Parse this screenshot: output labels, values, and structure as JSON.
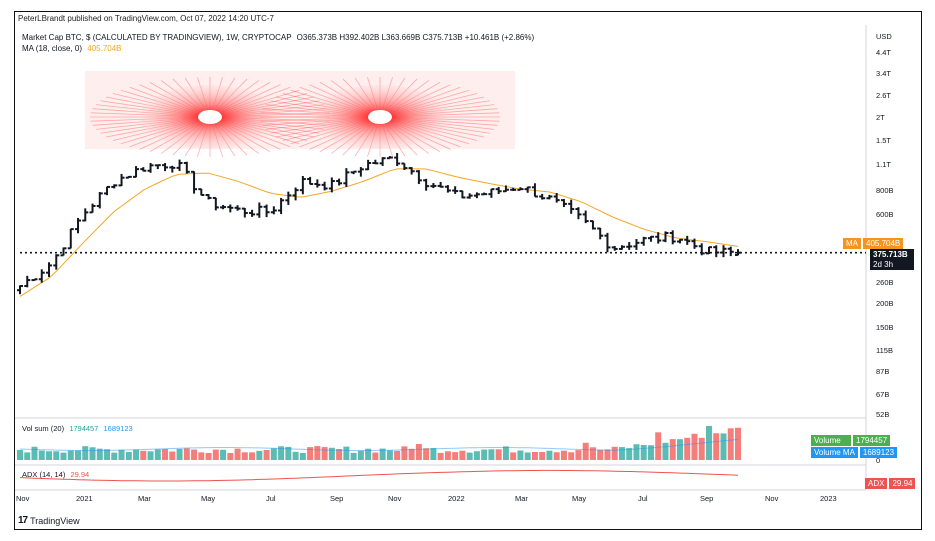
{
  "header": {
    "published_by": "PeterLBrandt published on TradingView.com, Oct 07, 2022 14:20 UTC-7",
    "symbol_title": "Market Cap BTC, $ (CALCULATED BY TRADINGVIEW), 1W, CRYPTOCAP",
    "ohlc": "O365.373B  H392.402B  L363.669B  C375.713B  +10.461B (+2.86%)",
    "ma_label": "MA (18, close, 0)",
    "ma_value": "405.704B"
  },
  "price_axis": {
    "currency": "USD",
    "labels": [
      "4.4T",
      "3.4T",
      "2.6T",
      "2T",
      "1.5T",
      "1.1T",
      "800B",
      "600B",
      "260B",
      "200B",
      "150B",
      "115B",
      "87B",
      "67B",
      "52B"
    ],
    "ma_badge": {
      "label": "MA",
      "value": "405.704B"
    },
    "price_badge": {
      "value": "375.713B",
      "countdown": "2d 3h"
    }
  },
  "time_axis": {
    "labels": [
      "Nov",
      "2021",
      "Mar",
      "May",
      "Jul",
      "Sep",
      "Nov",
      "2022",
      "Mar",
      "May",
      "Jul",
      "Sep",
      "Nov",
      "2023"
    ]
  },
  "volume_pane": {
    "label": "Vol sum (20)",
    "value1": "1794457",
    "value2": "1689123",
    "zero_label": "0",
    "badge_volume": {
      "label": "Volume",
      "value": "1794457"
    },
    "badge_volume_ma": {
      "label": "Volume MA",
      "value": "1689123"
    }
  },
  "adx_pane": {
    "label": "ADX (14, 14)",
    "value": "29.94",
    "badge": {
      "label": "ADX",
      "value": "29.94"
    }
  },
  "brand": {
    "name": "TradingView"
  },
  "colors": {
    "bars": "#131722",
    "ma": "#f5a623",
    "ma_badge": "#f7941d",
    "price_badge": "#131722",
    "vol_up": "#26a69a",
    "vol_down": "#ef5350",
    "vol_badge_green": "#4caf50",
    "vol_badge_blue": "#2196f3",
    "adx": "#ef5350",
    "glow": "#ff2020"
  },
  "chart_data": [
    {
      "type": "ohlc",
      "scale": "log",
      "interval": "1W",
      "x": [
        "2020-11",
        "2020-12",
        "2021-01",
        "2021-02",
        "2021-03",
        "2021-04",
        "2021-05",
        "2021-06",
        "2021-07",
        "2021-08",
        "2021-09",
        "2021-10",
        "2021-11",
        "2021-12",
        "2022-01",
        "2022-02",
        "2022-03",
        "2022-04",
        "2022-05",
        "2022-06",
        "2022-07",
        "2022-08",
        "2022-09",
        "2022-10"
      ],
      "close_series": [
        250,
        330,
        600,
        900,
        1080,
        1130,
        700,
        630,
        620,
        900,
        860,
        1100,
        1200,
        900,
        750,
        780,
        850,
        720,
        560,
        400,
        440,
        460,
        380,
        375
      ],
      "last": {
        "open": 365.373,
        "high": 392.402,
        "low": 363.669,
        "close": 375.713,
        "unit": "B"
      },
      "ma_series": [
        220,
        280,
        420,
        620,
        820,
        980,
        1000,
        900,
        780,
        740,
        800,
        900,
        1050,
        1050,
        950,
        880,
        820,
        790,
        700,
        580,
        500,
        450,
        430,
        405.704
      ],
      "ylim": [
        "52B",
        "4.4T"
      ]
    },
    {
      "type": "bar",
      "name": "Vol sum (20)",
      "last": 1794457,
      "ma_last": 1689123
    },
    {
      "type": "line",
      "name": "ADX (14, 14)",
      "last": 29.94
    }
  ]
}
